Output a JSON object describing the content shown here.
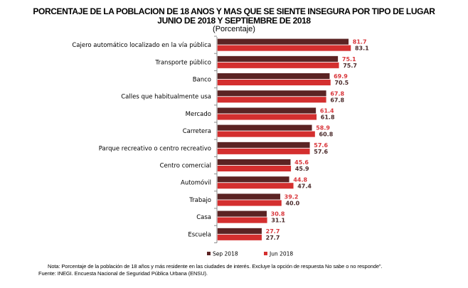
{
  "chart_data": {
    "type": "bar",
    "orientation": "horizontal",
    "title": "PORCENTAJE DE LA POBLACION DE 18 ANOS Y MAS QUE SE SIENTE INSEGURA POR TIPO DE LUGAR",
    "subtitle": "JUNIO DE 2018 Y SEPTIEMBRE DE 2018",
    "unit_label": "(Porcentaje)",
    "categories": [
      "Cajero automático localizado en la vía pública",
      "Transporte público",
      "Banco",
      "Calles que habitualmente usa",
      "Mercado",
      "Carretera",
      "Parque recreativo o centro recreativo",
      "Centro comercial",
      "Automóvil",
      "Trabajo",
      "Casa",
      "Escuela"
    ],
    "series": [
      {
        "name": "Sep 2018",
        "color": "#5b2323",
        "label_color": "#d9363b",
        "values": [
          81.7,
          75.1,
          69.9,
          67.8,
          61.4,
          58.9,
          57.6,
          45.6,
          44.8,
          39.2,
          30.8,
          27.7
        ]
      },
      {
        "name": "Jun 2018",
        "color": "#d42f2f",
        "label_color": "#4a2a2a",
        "values": [
          83.1,
          75.7,
          70.5,
          67.8,
          61.8,
          60.8,
          57.6,
          45.9,
          47.4,
          40.0,
          31.1,
          27.7
        ]
      }
    ],
    "xlim": [
      0,
      100
    ],
    "grid": false,
    "legend": "bottom"
  },
  "notes": {
    "nota": "Nota: Porcentaje  de la población  de 18 años y más residente en las ciudades  de interés. Excluye la opción  de respuesta  No sabe o no responde\".",
    "fuente": "Fuente:  INEGI.  Encuesta  Nacional  de Seguridad  Pública Urbana  (ENSU)."
  }
}
